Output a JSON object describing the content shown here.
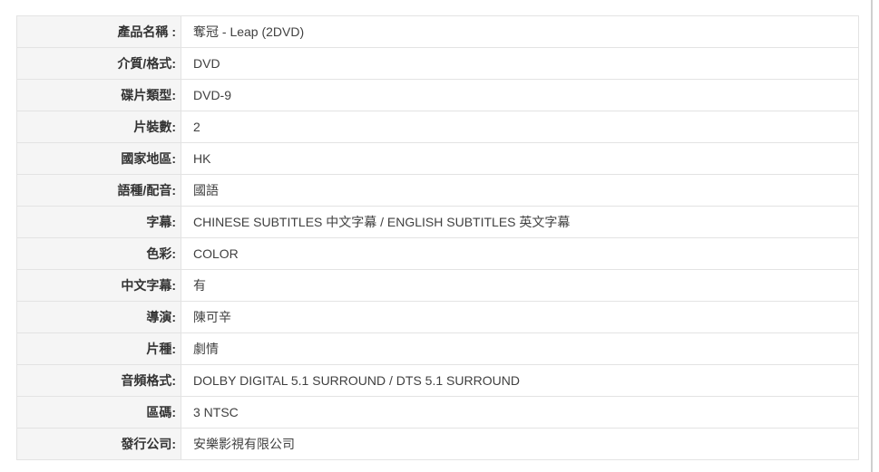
{
  "page": {
    "background_color": "#ffffff",
    "divider_color": "#cfcfcf"
  },
  "table": {
    "label_background": "#f5f5f5",
    "border_color": "#e3e3e3",
    "label_text_color": "#333333",
    "value_text_color": "#404040",
    "rows": [
      {
        "label": "產品名稱 :",
        "value": "奪冠 - Leap (2DVD)"
      },
      {
        "label": "介質/格式:",
        "value": "DVD"
      },
      {
        "label": "碟片類型:",
        "value": "DVD-9"
      },
      {
        "label": "片裝數:",
        "value": "2"
      },
      {
        "label": "國家地區:",
        "value": "HK"
      },
      {
        "label": "語種/配音:",
        "value": "國語"
      },
      {
        "label": "字幕:",
        "value": "CHINESE SUBTITLES 中文字幕 / ENGLISH SUBTITLES 英文字幕"
      },
      {
        "label": "色彩:",
        "value": "COLOR"
      },
      {
        "label": "中文字幕:",
        "value": "有"
      },
      {
        "label": "導演:",
        "value": "陳可辛"
      },
      {
        "label": "片種:",
        "value": "劇情"
      },
      {
        "label": "音頻格式:",
        "value": "DOLBY DIGITAL 5.1 SURROUND / DTS 5.1 SURROUND"
      },
      {
        "label": "區碼:",
        "value": "3 NTSC"
      },
      {
        "label": "發行公司:",
        "value": "安樂影視有限公司"
      }
    ]
  }
}
